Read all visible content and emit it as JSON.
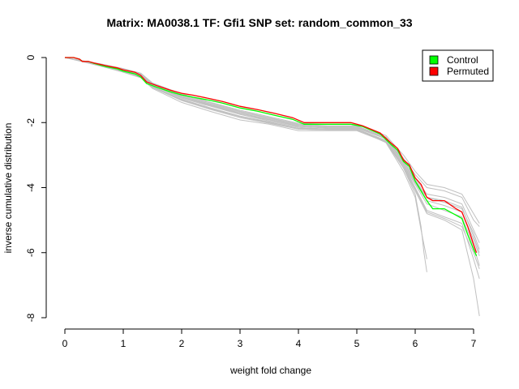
{
  "chart_data": {
    "type": "line",
    "title": "Matrix: MA0038.1 TF: Gfi1 SNP set: random_common_33",
    "xlabel": "weight fold change",
    "ylabel": "inverse cumulative distribution",
    "xlim": [
      0,
      7
    ],
    "ylim": [
      -8,
      0
    ],
    "x_ticks": [
      "0",
      "1",
      "2",
      "3",
      "4",
      "5",
      "6",
      "7"
    ],
    "y_ticks": [
      "0",
      "-2",
      "-4",
      "-6",
      "-8"
    ],
    "legend_position": "top-right",
    "grid": false,
    "colors": {
      "control": "#00ff00",
      "permuted": "#ff0000",
      "background": "#c0c0c0"
    },
    "legend": [
      {
        "name": "Control",
        "color": "#00ff00"
      },
      {
        "name": "Permuted",
        "color": "#ff0000"
      }
    ],
    "series": [
      {
        "name": "Control",
        "color": "#00ff00",
        "x": [
          0,
          0.15,
          0.25,
          0.3,
          0.4,
          0.5,
          0.7,
          0.9,
          1.0,
          1.2,
          1.3,
          1.4,
          1.6,
          1.8,
          2.0,
          2.2,
          2.5,
          2.7,
          3.0,
          3.3,
          3.6,
          3.9,
          4.1,
          4.5,
          4.9,
          5.1,
          5.4,
          5.6,
          5.7,
          5.8,
          5.9,
          6.0,
          6.1,
          6.2,
          6.3,
          6.5,
          6.7,
          6.8,
          6.9,
          7.0,
          7.05
        ],
        "y": [
          0,
          0,
          -0.05,
          -0.12,
          -0.12,
          -0.18,
          -0.28,
          -0.35,
          -0.42,
          -0.5,
          -0.6,
          -0.8,
          -0.93,
          -1.05,
          -1.15,
          -1.22,
          -1.32,
          -1.4,
          -1.55,
          -1.65,
          -1.78,
          -1.9,
          -2.05,
          -2.05,
          -2.05,
          -2.12,
          -2.35,
          -2.7,
          -2.85,
          -3.2,
          -3.35,
          -3.8,
          -4.1,
          -4.4,
          -4.65,
          -4.65,
          -4.85,
          -4.95,
          -5.45,
          -5.9,
          -6.1
        ]
      },
      {
        "name": "Permuted",
        "color": "#ff0000",
        "x": [
          0,
          0.15,
          0.25,
          0.3,
          0.4,
          0.5,
          0.7,
          0.9,
          1.0,
          1.2,
          1.3,
          1.4,
          1.6,
          1.8,
          2.0,
          2.2,
          2.5,
          2.7,
          3.0,
          3.3,
          3.6,
          3.9,
          4.1,
          4.5,
          4.9,
          5.1,
          5.4,
          5.6,
          5.7,
          5.8,
          5.9,
          6.0,
          6.1,
          6.2,
          6.3,
          6.5,
          6.7,
          6.8,
          6.9,
          7.0,
          7.05
        ],
        "y": [
          0,
          0,
          -0.05,
          -0.12,
          -0.12,
          -0.17,
          -0.25,
          -0.32,
          -0.38,
          -0.45,
          -0.55,
          -0.75,
          -0.88,
          -1.0,
          -1.1,
          -1.16,
          -1.27,
          -1.35,
          -1.5,
          -1.6,
          -1.72,
          -1.85,
          -2.0,
          -2.0,
          -2.0,
          -2.1,
          -2.32,
          -2.65,
          -2.8,
          -3.15,
          -3.3,
          -3.7,
          -3.9,
          -4.3,
          -4.4,
          -4.4,
          -4.65,
          -4.75,
          -5.2,
          -5.75,
          -6.0
        ]
      }
    ],
    "background_series": [
      {
        "x": [
          0,
          0.3,
          0.6,
          1.0,
          1.3,
          1.5,
          2.0,
          2.5,
          3.0,
          3.5,
          4.0,
          4.5,
          5.0,
          5.5,
          5.8,
          6.0,
          6.1,
          6.15,
          6.2
        ],
        "y": [
          0,
          -0.12,
          -0.22,
          -0.38,
          -0.55,
          -0.85,
          -1.25,
          -1.5,
          -1.75,
          -1.95,
          -2.15,
          -2.2,
          -2.2,
          -2.6,
          -3.4,
          -4.2,
          -5.2,
          -6.0,
          -6.6
        ]
      },
      {
        "x": [
          0,
          0.3,
          0.6,
          1.0,
          1.3,
          1.5,
          2.0,
          2.5,
          3.0,
          3.5,
          4.0,
          4.5,
          5.0,
          5.5,
          5.8,
          6.0,
          6.2,
          6.5,
          6.8,
          7.0,
          7.1
        ],
        "y": [
          0,
          -0.1,
          -0.2,
          -0.35,
          -0.5,
          -0.8,
          -1.15,
          -1.4,
          -1.65,
          -1.85,
          -2.05,
          -2.1,
          -2.1,
          -2.45,
          -3.1,
          -3.6,
          -4.0,
          -4.1,
          -4.3,
          -5.0,
          -5.2
        ]
      },
      {
        "x": [
          0,
          0.3,
          0.6,
          1.0,
          1.3,
          1.5,
          2.0,
          2.5,
          3.0,
          3.5,
          4.0,
          4.5,
          5.0,
          5.5,
          5.8,
          6.0,
          6.2,
          6.5,
          6.8,
          7.0,
          7.1
        ],
        "y": [
          0,
          -0.12,
          -0.24,
          -0.42,
          -0.6,
          -0.92,
          -1.32,
          -1.6,
          -1.85,
          -2.02,
          -2.2,
          -2.22,
          -2.22,
          -2.55,
          -3.3,
          -4.0,
          -4.7,
          -4.9,
          -5.1,
          -6.2,
          -6.8
        ]
      },
      {
        "x": [
          0,
          0.3,
          0.6,
          1.0,
          1.3,
          1.5,
          2.0,
          2.5,
          3.0,
          3.5,
          4.0,
          4.5,
          5.0,
          5.5,
          5.8,
          6.0,
          6.2,
          6.5,
          6.8,
          7.0,
          7.1
        ],
        "y": [
          0,
          -0.11,
          -0.21,
          -0.37,
          -0.52,
          -0.82,
          -1.2,
          -1.45,
          -1.7,
          -1.9,
          -2.1,
          -2.15,
          -2.15,
          -2.5,
          -3.2,
          -3.8,
          -4.3,
          -4.4,
          -4.6,
          -5.5,
          -6.0
        ]
      },
      {
        "x": [
          0,
          0.3,
          0.6,
          1.0,
          1.3,
          1.5,
          2.0,
          2.5,
          3.0,
          3.5,
          4.0,
          4.5,
          5.0,
          5.5,
          5.8,
          6.0,
          6.2,
          6.5,
          6.8,
          7.0,
          7.1
        ],
        "y": [
          0,
          -0.13,
          -0.26,
          -0.45,
          -0.62,
          -0.95,
          -1.38,
          -1.66,
          -1.92,
          -2.05,
          -2.25,
          -2.25,
          -2.25,
          -2.6,
          -3.4,
          -4.1,
          -4.8,
          -5.0,
          -5.3,
          -6.8,
          -7.95
        ]
      },
      {
        "x": [
          0,
          0.3,
          0.6,
          1.0,
          1.3,
          1.5,
          2.0,
          2.5,
          3.0,
          3.5,
          4.0,
          4.5,
          5.0,
          5.5,
          5.8,
          6.0,
          6.2,
          6.5,
          6.8,
          7.0,
          7.1
        ],
        "y": [
          0,
          -0.1,
          -0.19,
          -0.34,
          -0.48,
          -0.78,
          -1.12,
          -1.38,
          -1.62,
          -1.82,
          -2.02,
          -2.05,
          -2.05,
          -2.4,
          -3.0,
          -3.5,
          -3.9,
          -4.0,
          -4.2,
          -4.8,
          -5.1
        ]
      },
      {
        "x": [
          0,
          0.3,
          0.6,
          1.0,
          1.3,
          1.5,
          2.0,
          2.5,
          3.0,
          3.5,
          4.0,
          4.5,
          5.0,
          5.5,
          5.8,
          6.0,
          6.2,
          6.5,
          6.8,
          7.0,
          7.1
        ],
        "y": [
          0,
          -0.12,
          -0.23,
          -0.4,
          -0.57,
          -0.88,
          -1.28,
          -1.55,
          -1.8,
          -1.98,
          -2.18,
          -2.2,
          -2.2,
          -2.55,
          -3.3,
          -3.9,
          -4.5,
          -4.7,
          -4.9,
          -5.8,
          -6.4
        ]
      },
      {
        "x": [
          0,
          0.3,
          0.6,
          1.0,
          1.3,
          1.5,
          2.0,
          2.5,
          3.0,
          3.5,
          4.0,
          4.5,
          5.0,
          5.5,
          5.8,
          6.0,
          6.2,
          6.5,
          6.8,
          7.0,
          7.1
        ],
        "y": [
          0,
          -0.11,
          -0.22,
          -0.39,
          -0.54,
          -0.85,
          -1.22,
          -1.48,
          -1.75,
          -1.92,
          -2.12,
          -2.17,
          -2.17,
          -2.5,
          -3.25,
          -3.85,
          -4.4,
          -4.55,
          -4.75,
          -5.6,
          -6.1
        ]
      },
      {
        "x": [
          0,
          0.3,
          0.6,
          1.0,
          1.3,
          1.5,
          2.0,
          2.5,
          3.0,
          3.5,
          4.0,
          4.5,
          5.0,
          5.5,
          5.8,
          6.0,
          6.2,
          6.5,
          6.8,
          7.0,
          7.1
        ],
        "y": [
          0,
          -0.12,
          -0.25,
          -0.43,
          -0.6,
          -0.9,
          -1.3,
          -1.58,
          -1.82,
          -2.0,
          -2.2,
          -2.22,
          -2.22,
          -2.58,
          -3.35,
          -4.05,
          -4.75,
          -4.95,
          -5.2,
          -6.0,
          -6.5
        ]
      },
      {
        "x": [
          0,
          0.3,
          0.6,
          1.0,
          1.3,
          1.5,
          2.0,
          2.5,
          3.0,
          3.5,
          4.0,
          4.5,
          5.0,
          5.5,
          5.8,
          6.0,
          6.2,
          6.5,
          6.8,
          7.0,
          7.1
        ],
        "y": [
          0,
          -0.1,
          -0.2,
          -0.36,
          -0.51,
          -0.8,
          -1.18,
          -1.43,
          -1.67,
          -1.87,
          -2.07,
          -2.12,
          -2.12,
          -2.45,
          -3.15,
          -3.7,
          -4.2,
          -4.3,
          -4.5,
          -5.3,
          -5.7
        ]
      },
      {
        "x": [
          0,
          0.3,
          0.6,
          1.0,
          1.3,
          1.5,
          2.0,
          2.5,
          3.0,
          3.5,
          4.0,
          4.5,
          5.0,
          5.5,
          5.8,
          6.0,
          6.1,
          6.2
        ],
        "y": [
          0,
          -0.12,
          -0.24,
          -0.41,
          -0.58,
          -0.9,
          -1.3,
          -1.57,
          -1.82,
          -2.0,
          -2.18,
          -2.2,
          -2.2,
          -2.62,
          -3.5,
          -4.3,
          -5.3,
          -6.2
        ]
      },
      {
        "x": [
          0,
          0.3,
          0.6,
          1.0,
          1.3,
          1.5,
          2.0,
          2.5,
          3.0,
          3.5,
          4.0,
          4.5,
          5.0,
          5.5,
          5.8,
          6.0,
          6.2,
          6.5,
          6.8,
          7.0,
          7.1
        ],
        "y": [
          0,
          -0.11,
          -0.21,
          -0.38,
          -0.53,
          -0.83,
          -1.22,
          -1.47,
          -1.72,
          -1.9,
          -2.1,
          -2.14,
          -2.14,
          -2.48,
          -3.2,
          -3.75,
          -4.3,
          -4.45,
          -4.65,
          -5.4,
          -5.9
        ]
      }
    ]
  }
}
